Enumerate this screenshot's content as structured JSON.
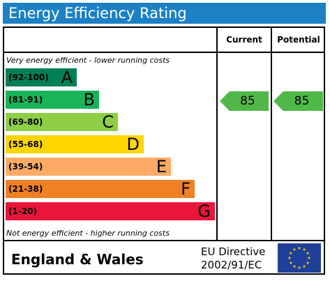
{
  "header": {
    "title": "Energy Efficiency Rating"
  },
  "columns": {
    "current": "Current",
    "potential": "Potential"
  },
  "notes": {
    "top": "Very energy efficient - lower running costs",
    "bottom": "Not energy efficient - higher running costs"
  },
  "chart_data": {
    "type": "bar",
    "title": "Energy Efficiency Rating",
    "categories": [
      "A",
      "B",
      "C",
      "D",
      "E",
      "F",
      "G"
    ],
    "series": [
      {
        "ranges": [
          "(92-100)",
          "(81-91)",
          "(69-80)",
          "(55-68)",
          "(39-54)",
          "(21-38)",
          "(1-20)"
        ]
      }
    ],
    "colors": [
      "#008054",
      "#19b459",
      "#8dce46",
      "#ffd500",
      "#fcaa65",
      "#ef8023",
      "#e9153b"
    ],
    "current_rating": {
      "value": 85,
      "band": "B",
      "color": "#50b848"
    },
    "potential_rating": {
      "value": 85,
      "band": "B",
      "color": "#50b848"
    }
  },
  "footer": {
    "region": "England & Wales",
    "directive_line1": "EU Directive",
    "directive_line2": "2002/91/EC",
    "flag_icon": "eu-flag-icon",
    "flag_color": "#1f3f99",
    "star_color": "#ffdd00"
  }
}
